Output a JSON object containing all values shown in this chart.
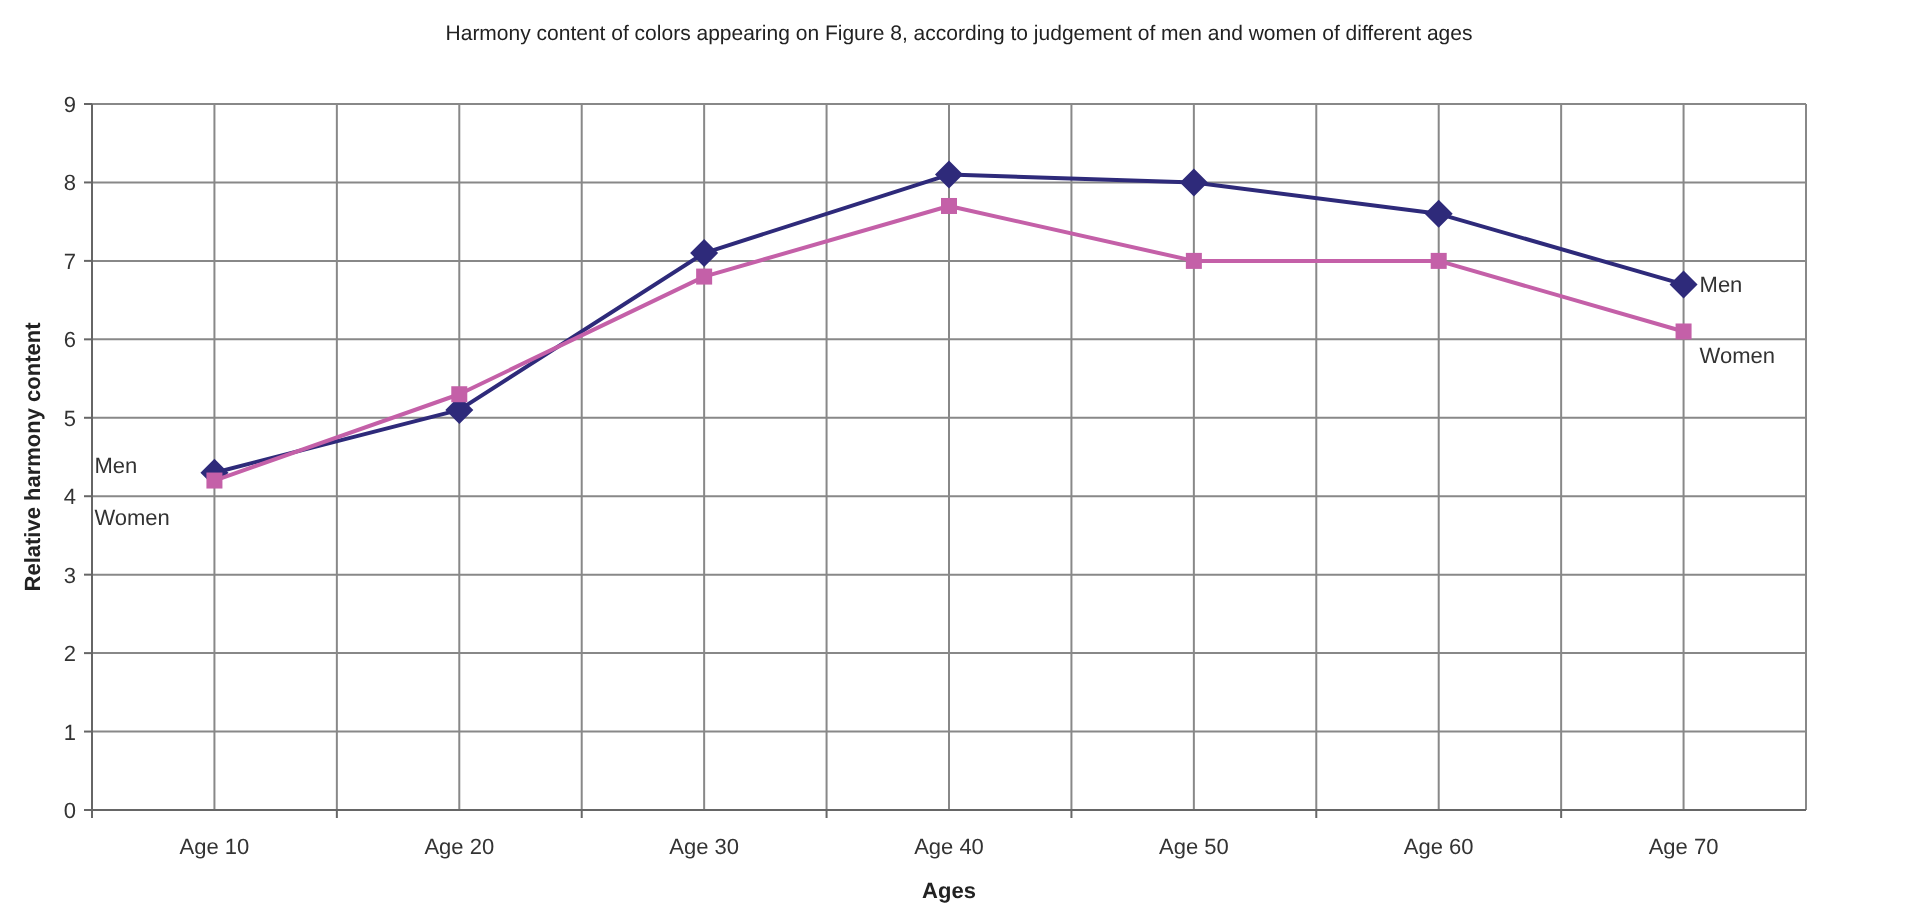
{
  "chart_data": {
    "type": "line",
    "title": "Harmony content of colors appearing on Figure 8, according to judgement of men and women of different ages",
    "xlabel": "Ages",
    "ylabel": "Relative harmony content",
    "categories": [
      "Age 10",
      "Age 20",
      "Age 30",
      "Age 40",
      "Age 50",
      "Age 60",
      "Age 70"
    ],
    "series": [
      {
        "name": "Men",
        "color": "#2e2a7a",
        "marker": "diamond",
        "values": [
          4.3,
          5.1,
          7.1,
          8.1,
          8.0,
          7.6,
          6.7
        ]
      },
      {
        "name": "Women",
        "color": "#c460a8",
        "marker": "square",
        "values": [
          4.2,
          5.3,
          6.8,
          7.7,
          7.0,
          7.0,
          6.1
        ]
      }
    ],
    "ylim": [
      0,
      9
    ],
    "yticks": [
      0,
      1,
      2,
      3,
      4,
      5,
      6,
      7,
      8,
      9
    ],
    "grid": true,
    "line_style": "solid"
  }
}
